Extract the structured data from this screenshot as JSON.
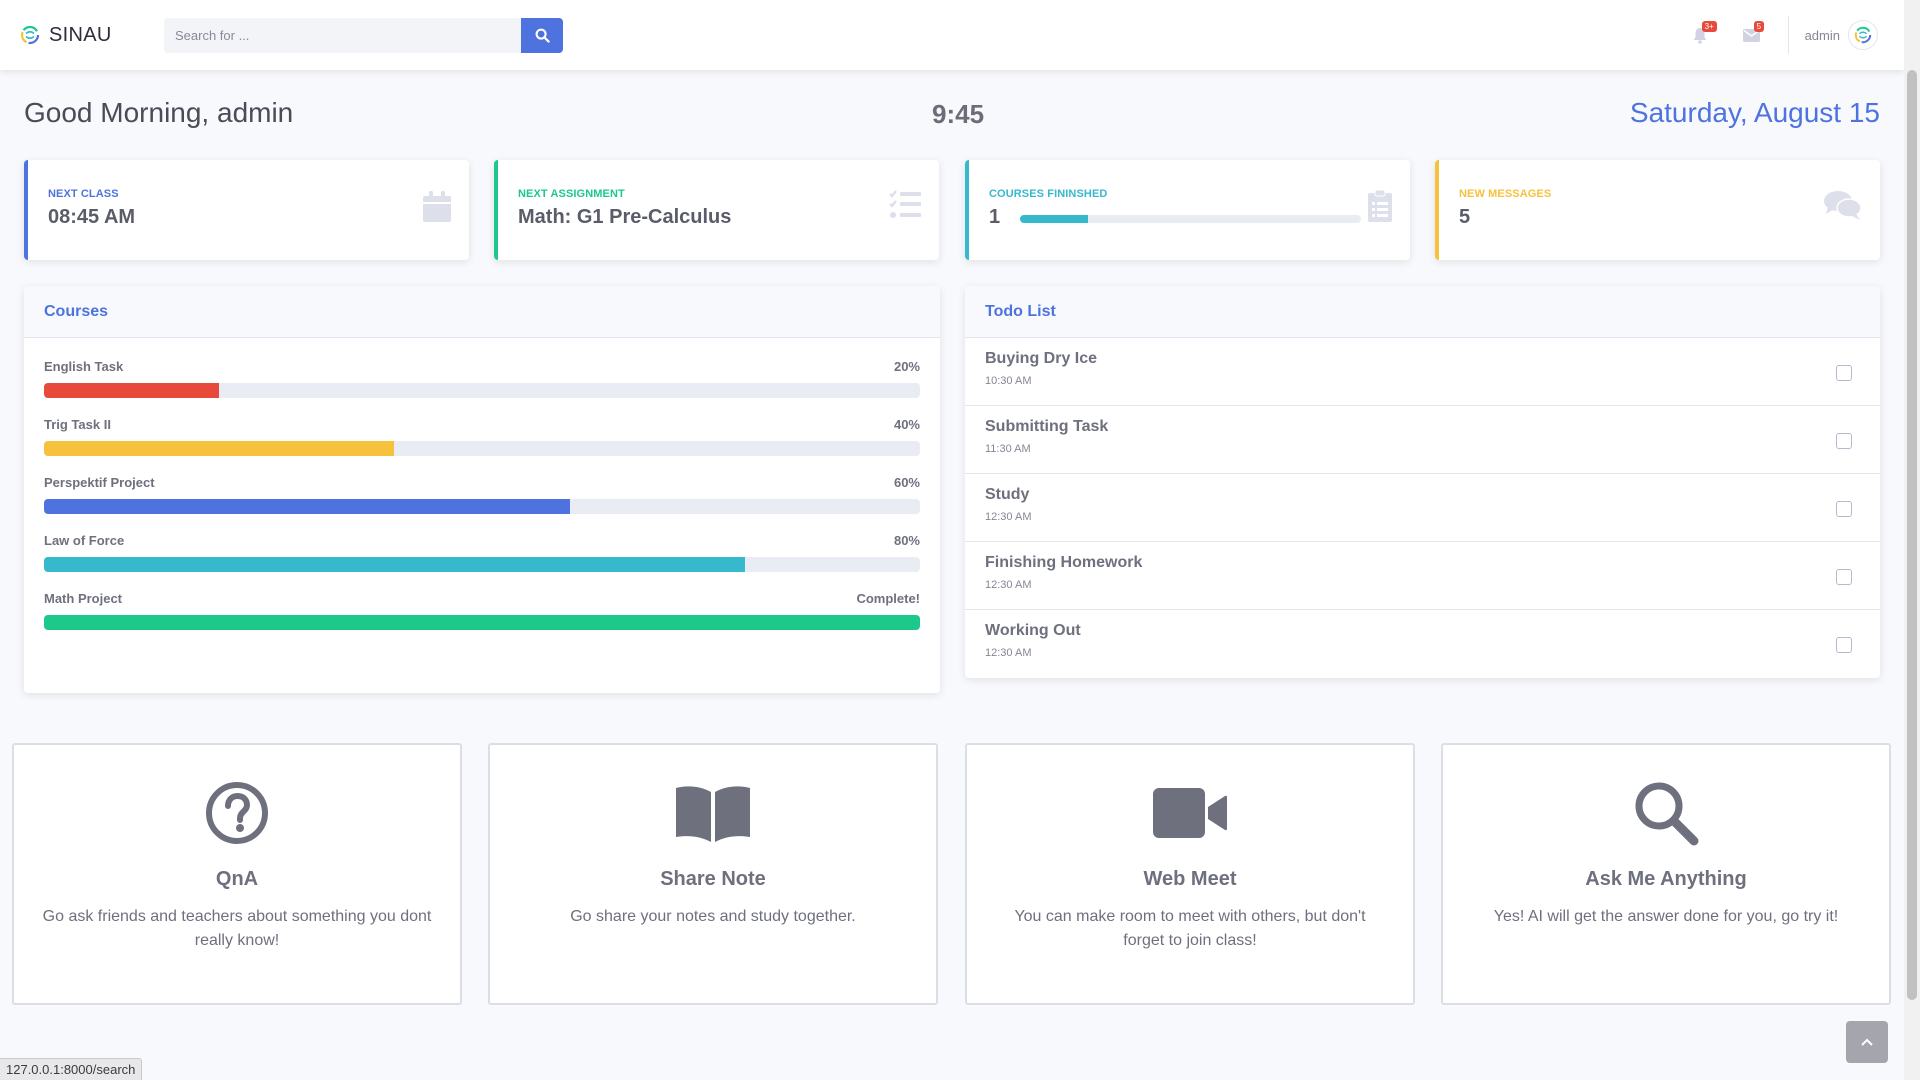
{
  "brand": {
    "name": "SINAU"
  },
  "search": {
    "placeholder": "Search for ..."
  },
  "topbar": {
    "alerts_badge": "3+",
    "messages_badge": "5",
    "user_name": "admin"
  },
  "greeting": "Good Morning, admin",
  "clock": "9:45",
  "date": "Saturday, August 15",
  "stats": [
    {
      "label": "Next Class",
      "value": "08:45 AM",
      "color": "#4e73df",
      "icon": "calendar-icon"
    },
    {
      "label": "Next Assignment",
      "value": "Math: G1 Pre-Calculus",
      "color": "#1cc88a",
      "icon": "tasks-icon"
    },
    {
      "label": "Courses Fininshed",
      "value": "1",
      "color": "#36b9cc",
      "icon": "clipboard-list-icon",
      "progress_percent": 20
    },
    {
      "label": "New Messages",
      "value": "5",
      "color": "#f6c23e",
      "icon": "comments-icon"
    }
  ],
  "courses": {
    "title": "Courses",
    "items": [
      {
        "name": "English Task",
        "label": "20%",
        "percent": 20,
        "color": "#e74a3b"
      },
      {
        "name": "Trig Task II",
        "label": "40%",
        "percent": 40,
        "color": "#f6c23e"
      },
      {
        "name": "Perspektif Project",
        "label": "60%",
        "percent": 60,
        "color": "#4e73df"
      },
      {
        "name": "Law of Force",
        "label": "80%",
        "percent": 80,
        "color": "#36b9cc"
      },
      {
        "name": "Math Project",
        "label": "Complete!",
        "percent": 100,
        "color": "#1cc88a"
      }
    ]
  },
  "todo": {
    "title": "Todo List",
    "items": [
      {
        "title": "Buying Dry Ice",
        "time": "10:30 AM"
      },
      {
        "title": "Submitting Task",
        "time": "11:30 AM"
      },
      {
        "title": "Study",
        "time": "12:30 AM"
      },
      {
        "title": "Finishing Homework",
        "time": "12:30 AM"
      },
      {
        "title": "Working Out",
        "time": "12:30 AM"
      }
    ]
  },
  "features": [
    {
      "title": "QnA",
      "desc": "Go ask friends and teachers about something you dont really know!",
      "icon": "question-circle-icon"
    },
    {
      "title": "Share Note",
      "desc": "Go share your notes and study together.",
      "icon": "book-open-icon"
    },
    {
      "title": "Web Meet",
      "desc": "You can make room to meet with others, but don't forget to join class!",
      "icon": "video-icon"
    },
    {
      "title": "Ask Me Anything",
      "desc": "Yes! AI will get the answer done for you, go try it!",
      "icon": "search-icon"
    }
  ],
  "status_url": "127.0.0.1:8000/search"
}
